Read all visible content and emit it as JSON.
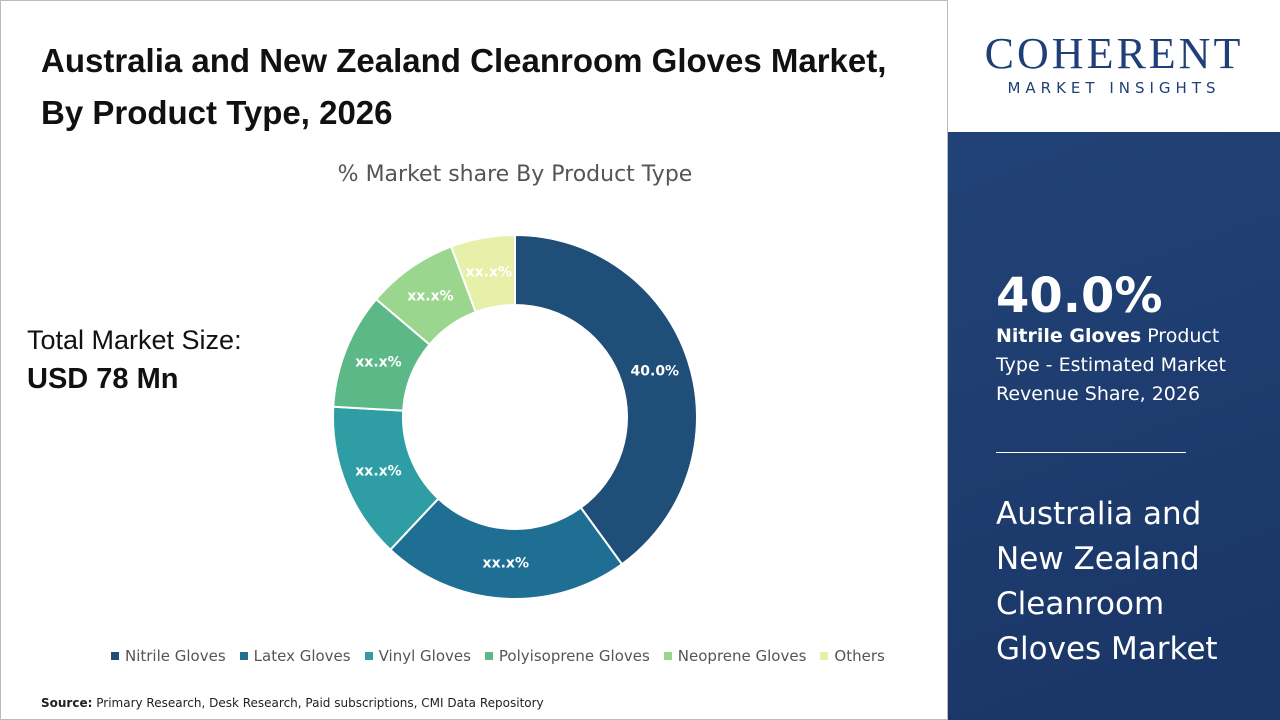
{
  "header": {
    "title": "Australia and New Zealand Cleanroom Gloves Market, By Product Type, 2026"
  },
  "market_size": {
    "label": "Total Market Size:",
    "value": "USD 78 Mn"
  },
  "source": {
    "label": "Source:",
    "text": "Primary Research, Desk Research, Paid subscriptions, CMI Data Repository"
  },
  "logo": {
    "name": "COHERENT",
    "tagline": "MARKET INSIGHTS"
  },
  "sidebar": {
    "stat": "40.0%",
    "segment": "Nitrile Gloves",
    "description": "Product Type - Estimated Market Revenue Share, 2026",
    "market": "Australia and New Zealand Cleanroom Gloves Market"
  },
  "chart_data": {
    "type": "pie",
    "subtitle": "% Market share By Product Type",
    "categories": [
      "Nitrile Gloves",
      "Latex Gloves",
      "Vinyl Gloves",
      "Polyisoprene Gloves",
      "Neoprene Gloves",
      "Others"
    ],
    "values": [
      40.0,
      22.0,
      13.9,
      10.3,
      8.1,
      5.7
    ],
    "value_labels": [
      "40.0%",
      "xx.x%",
      "xx.x%",
      "xx.x%",
      "xx.x%",
      "xx.x%"
    ],
    "colors": [
      "#1f4e79",
      "#1f6f94",
      "#2e9ea4",
      "#5cb887",
      "#9ad68e",
      "#e6f0a8"
    ]
  }
}
